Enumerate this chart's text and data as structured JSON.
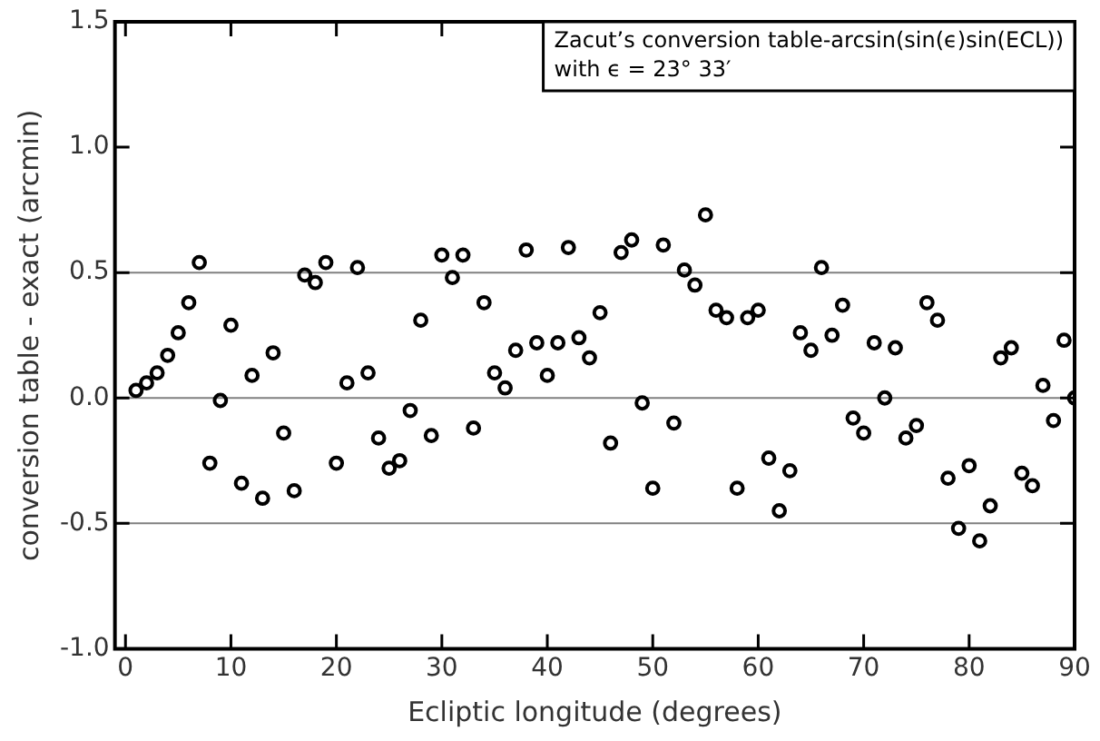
{
  "chart_data": {
    "type": "scatter",
    "xlabel": "Ecliptic longitude (degrees)",
    "ylabel": "conversion table - exact (arcmin)",
    "annotations": [
      "Zacut’s conversion table-arcsin(sin(ϵ)sin(ECL))",
      "with ϵ = 23° 33′"
    ],
    "x": [
      1,
      2,
      3,
      4,
      5,
      6,
      7,
      8,
      9,
      10,
      11,
      12,
      13,
      14,
      15,
      16,
      17,
      18,
      19,
      20,
      21,
      22,
      23,
      24,
      25,
      26,
      27,
      28,
      29,
      30,
      31,
      32,
      33,
      34,
      35,
      36,
      37,
      38,
      39,
      40,
      41,
      42,
      43,
      44,
      45,
      46,
      47,
      48,
      49,
      50,
      51,
      52,
      53,
      54,
      55,
      56,
      57,
      58,
      59,
      60,
      61,
      62,
      63,
      64,
      65,
      66,
      67,
      68,
      69,
      70,
      71,
      72,
      73,
      74,
      75,
      76,
      77,
      78,
      79,
      80,
      81,
      82,
      83,
      84,
      85,
      86,
      87,
      88,
      89,
      90
    ],
    "series": [
      {
        "color": "#000000",
        "values": [
          0.03,
          0.06,
          0.1,
          0.17,
          0.26,
          0.38,
          0.54,
          -0.26,
          -0.01,
          0.29,
          -0.34,
          0.09,
          -0.4,
          0.18,
          -0.14,
          -0.37,
          0.49,
          0.46,
          0.54,
          -0.26,
          0.06,
          0.52,
          0.1,
          -0.16,
          -0.28,
          -0.25,
          -0.05,
          0.31,
          -0.15,
          0.57,
          0.48,
          0.57,
          -0.12,
          0.38,
          0.1,
          0.04,
          0.19,
          0.59,
          0.22,
          0.09,
          0.22,
          0.6,
          0.24,
          0.16,
          0.34,
          -0.18,
          0.58,
          0.63,
          -0.02,
          -0.36,
          0.61,
          -0.1,
          0.51,
          0.45,
          0.73,
          0.35,
          0.32,
          -0.36,
          0.32,
          0.35,
          -0.24,
          -0.45,
          -0.29,
          0.26,
          0.19,
          0.52,
          0.25,
          0.37,
          -0.08,
          -0.14,
          0.22,
          0.0,
          0.2,
          -0.16,
          -0.11,
          0.38,
          0.31,
          -0.32,
          -0.52,
          -0.27,
          -0.57,
          -0.43,
          0.16,
          0.2,
          -0.3,
          -0.35,
          0.05,
          -0.09,
          0.23,
          0.0
        ]
      }
    ],
    "xlim": [
      -1,
      90
    ],
    "xticks": [
      0,
      10,
      20,
      30,
      40,
      50,
      60,
      70,
      80,
      90
    ],
    "ylim": [
      -1.0,
      1.5
    ],
    "yticks": [
      {
        "value": -1.0,
        "label": "-1.0"
      },
      {
        "value": -0.5,
        "label": "-0.5"
      },
      {
        "value": 0,
        "label": "0.0"
      },
      {
        "value": 0.5,
        "label": "0.5"
      },
      {
        "value": 1.0,
        "label": "1.0"
      },
      {
        "value": 1.5,
        "label": "1.5"
      }
    ],
    "ref_lines": [
      {
        "axis": "y",
        "value": 0.5,
        "color": "#808080"
      },
      {
        "axis": "y",
        "value": 0,
        "color": "#808080"
      },
      {
        "axis": "y",
        "value": -0.5,
        "color": "#808080"
      }
    ],
    "marker": "circle",
    "grid": false,
    "legend": false
  }
}
